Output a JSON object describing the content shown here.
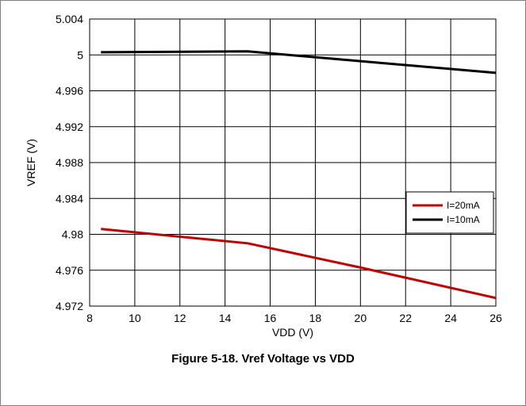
{
  "caption": "Figure 5-18. Vref Voltage vs VDD",
  "chart_data": {
    "type": "line",
    "xlabel": "VDD (V)",
    "ylabel": "VREF (V)",
    "xlim": [
      8,
      26
    ],
    "ylim": [
      4.972,
      5.004
    ],
    "xticks": [
      8,
      10,
      12,
      14,
      16,
      18,
      20,
      22,
      24,
      26
    ],
    "yticks": [
      4.972,
      4.976,
      4.98,
      4.984,
      4.988,
      4.992,
      4.996,
      5,
      5.004
    ],
    "grid": true,
    "legend_position": "right",
    "series": [
      {
        "name": "I=20mA",
        "color": "#c00000",
        "x": [
          8.5,
          15,
          20,
          26
        ],
        "y": [
          4.9806,
          4.979,
          4.9763,
          4.9729
        ]
      },
      {
        "name": "I=10mA",
        "color": "#000000",
        "x": [
          8.5,
          15,
          20,
          26
        ],
        "y": [
          5.0003,
          5.0004,
          4.9993,
          4.998
        ]
      }
    ]
  }
}
